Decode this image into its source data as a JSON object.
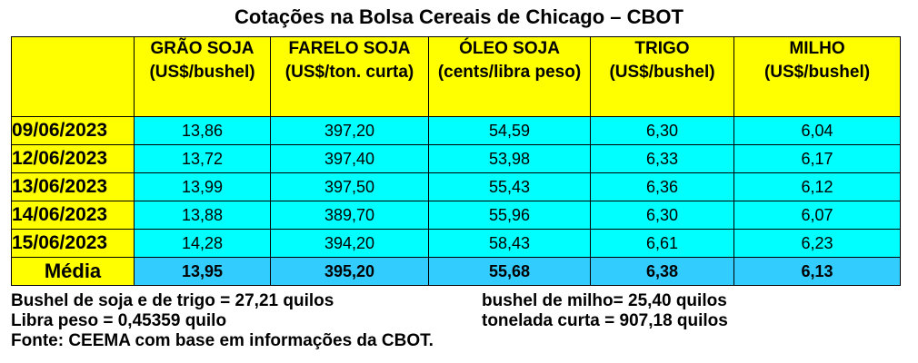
{
  "title": "Cotações na Bolsa Cereais de Chicago – CBOT",
  "columns": [
    {
      "name": "GRÃO SOJA",
      "unit": "(US$/bushel)"
    },
    {
      "name": "FARELO SOJA",
      "unit": "(US$/ton. curta)"
    },
    {
      "name": "ÓLEO SOJA",
      "unit": "(cents/libra peso)"
    },
    {
      "name": "TRIGO",
      "unit": "(US$/bushel)"
    },
    {
      "name": "MILHO",
      "unit": "(US$/bushel)"
    }
  ],
  "rows": [
    {
      "date": "09/06/2023",
      "values": [
        "13,86",
        "397,20",
        "54,59",
        "6,30",
        "6,04"
      ]
    },
    {
      "date": "12/06/2023",
      "values": [
        "13,72",
        "397,40",
        "53,98",
        "6,33",
        "6,17"
      ]
    },
    {
      "date": "13/06/2023",
      "values": [
        "13,99",
        "397,50",
        "55,43",
        "6,36",
        "6,12"
      ]
    },
    {
      "date": "14/06/2023",
      "values": [
        "13,88",
        "389,70",
        "55,96",
        "6,30",
        "6,07"
      ]
    },
    {
      "date": "15/06/2023",
      "values": [
        "14,28",
        "394,20",
        "58,43",
        "6,61",
        "6,23"
      ]
    }
  ],
  "average": {
    "label": "Média",
    "values": [
      "13,95",
      "395,20",
      "55,68",
      "6,38",
      "6,13"
    ]
  },
  "notes": {
    "left1": "Bushel de soja e de trigo = 27,21 quilos",
    "right1": "bushel de milho= 25,40 quilos",
    "left2": "Libra peso = 0,45359 quilo",
    "right2": "tonelada curta = 907,18 quilos",
    "source": "Fonte: CEEMA com base em informações da CBOT."
  },
  "colors": {
    "header": "#ffff00",
    "cells": "#00ffff",
    "average_cells": "#33ccff"
  }
}
